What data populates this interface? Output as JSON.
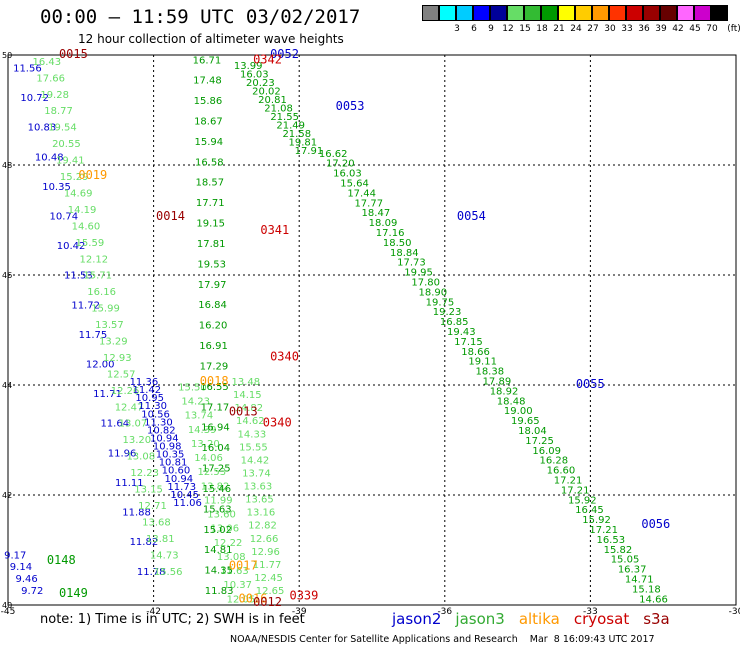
{
  "header": {
    "title": "00:00 – 11:59 UTC 03/02/2017",
    "subtitle": "12 hour collection of altimeter wave heights"
  },
  "colorbar": {
    "unit": "(ft)",
    "bins": [
      {
        "label": "",
        "color": "#808080"
      },
      {
        "label": "3",
        "color": "#00ffff"
      },
      {
        "label": "6",
        "color": "#00ccff"
      },
      {
        "label": "9",
        "color": "#0000ff"
      },
      {
        "label": "12",
        "color": "#000099"
      },
      {
        "label": "15",
        "color": "#66dd66"
      },
      {
        "label": "18",
        "color": "#33bb33"
      },
      {
        "label": "21",
        "color": "#009900"
      },
      {
        "label": "24",
        "color": "#ffff00"
      },
      {
        "label": "27",
        "color": "#ffcc00"
      },
      {
        "label": "30",
        "color": "#ff9900"
      },
      {
        "label": "33",
        "color": "#ff3300"
      },
      {
        "label": "36",
        "color": "#cc0000"
      },
      {
        "label": "39",
        "color": "#990000"
      },
      {
        "label": "42",
        "color": "#660000"
      },
      {
        "label": "45",
        "color": "#ff66ff"
      },
      {
        "label": "70",
        "color": "#cc00cc"
      },
      {
        "label": "",
        "color": "#000000"
      }
    ]
  },
  "map": {
    "lon_range": [
      -45,
      -30
    ],
    "lat_range": [
      40,
      50
    ],
    "x_ticks": [
      {
        "value": -45,
        "label": "-45"
      },
      {
        "value": -42,
        "label": "-42"
      },
      {
        "value": -39,
        "label": "-39"
      },
      {
        "value": -36,
        "label": "-36"
      },
      {
        "value": -33,
        "label": "-33"
      },
      {
        "value": -30,
        "label": "-30"
      }
    ],
    "y_ticks": [
      {
        "value": 40,
        "label": "40"
      },
      {
        "value": 42,
        "label": "42"
      },
      {
        "value": 44,
        "label": "44"
      },
      {
        "value": 46,
        "label": "46"
      },
      {
        "value": 48,
        "label": "48"
      },
      {
        "value": 50,
        "label": "50"
      }
    ],
    "colors": {
      "jason2": "#0000cc",
      "jason3": "#33aa33",
      "altika": "#ff9900",
      "cryosat": "#cc0000",
      "s3a": "#990000",
      "light": "#66dd66",
      "green": "#009900",
      "yellow": "#ffff00",
      "grid": "#000000"
    },
    "track_labels": [
      {
        "text": "0015",
        "lon": -43.95,
        "lat": 49.95,
        "color": "s3a"
      },
      {
        "text": "0052",
        "lon": -39.6,
        "lat": 49.95,
        "color": "jason2"
      },
      {
        "text": "0342",
        "lon": -39.95,
        "lat": 49.85,
        "color": "cryosat"
      },
      {
        "text": "0053",
        "lon": -38.25,
        "lat": 49.0,
        "color": "jason2"
      },
      {
        "text": "0019",
        "lon": -43.55,
        "lat": 47.75,
        "color": "altika"
      },
      {
        "text": "0014",
        "lon": -41.95,
        "lat": 47.0,
        "color": "s3a"
      },
      {
        "text": "0054",
        "lon": -35.75,
        "lat": 47.0,
        "color": "jason2"
      },
      {
        "text": "0341",
        "lon": -39.8,
        "lat": 46.75,
        "color": "cryosat"
      },
      {
        "text": "0340",
        "lon": -39.6,
        "lat": 44.45,
        "color": "cryosat"
      },
      {
        "text": "0018",
        "lon": -41.05,
        "lat": 44.0,
        "color": "altika"
      },
      {
        "text": "0055",
        "lon": -33.3,
        "lat": 43.95,
        "color": "jason2"
      },
      {
        "text": "0013",
        "lon": -40.45,
        "lat": 43.45,
        "color": "s3a"
      },
      {
        "text": "0340",
        "lon": -39.75,
        "lat": 43.25,
        "color": "cryosat"
      },
      {
        "text": "0148",
        "lon": -44.2,
        "lat": 40.75,
        "color": "green"
      },
      {
        "text": "0149",
        "lon": -43.95,
        "lat": 40.15,
        "color": "green"
      },
      {
        "text": "0017",
        "lon": -40.45,
        "lat": 40.65,
        "color": "altika"
      },
      {
        "text": "0056",
        "lon": -31.95,
        "lat": 41.4,
        "color": "jason2"
      },
      {
        "text": "0339",
        "lon": -39.2,
        "lat": 40.1,
        "color": "cryosat"
      },
      {
        "text": "0016",
        "lon": -40.25,
        "lat": 40.05,
        "color": "altika"
      },
      {
        "text": "0012",
        "lon": -39.95,
        "lat": 39.98,
        "color": "s3a"
      }
    ],
    "tracks": [
      {
        "name": "jason2-west",
        "start": [
          -44.6,
          49.7
        ],
        "end": [
          -42.05,
          40.55
        ],
        "color": "jason2",
        "values": [
          "11.56",
          "10.72",
          "10.83",
          "10.48",
          "10.35",
          "10.74",
          "10.42",
          "11.53",
          "11.72",
          "11.75",
          "12.00",
          "11.71",
          "11.64",
          "11.96",
          "11.11",
          "11.88",
          "11.82",
          "11.78"
        ]
      },
      {
        "name": "jason3-west",
        "start": [
          -44.2,
          49.82
        ],
        "end": [
          -41.7,
          40.55
        ],
        "color": "light",
        "values": [
          "16.43",
          "17.66",
          "19.28",
          "18.77",
          "19.54",
          "20.55",
          "19.41",
          "15.29",
          "14.69",
          "14.19",
          "14.60",
          "15.59",
          "12.12",
          "15.71",
          "16.16",
          "15.99",
          "13.57",
          "13.29",
          "12.93",
          "12.57",
          "12.26",
          "12.47",
          "13.07",
          "13.20",
          "13.08",
          "12.23",
          "13.15",
          "12.71",
          "13.68",
          "13.81",
          "14.73",
          "15.56"
        ]
      },
      {
        "name": "jason2-mid",
        "start": [
          -42.2,
          44.0
        ],
        "end": [
          -41.3,
          41.8
        ],
        "color": "jason2",
        "values": [
          "11.36",
          "11.42",
          "10.95",
          "11.30",
          "10.56",
          "11.30",
          "10.82",
          "10.94",
          "10.98",
          "10.35",
          "10.81",
          "10.60",
          "10.94",
          "11.73",
          "10.45",
          "11.06"
        ]
      },
      {
        "name": "jason3-mid",
        "start": [
          -41.2,
          43.9
        ],
        "end": [
          -40.2,
          40.05
        ],
        "color": "light",
        "values": [
          "15.50",
          "14.23",
          "13.74",
          "14.39",
          "13.20",
          "14.06",
          "12.53",
          "13.82",
          "11.99",
          "13.60",
          "13.06",
          "12.22",
          "13.08",
          "11.63",
          "10.37",
          "12.05"
        ]
      },
      {
        "name": "jason3-central",
        "start": [
          -40.9,
          49.85
        ],
        "end": [
          -40.65,
          40.2
        ],
        "color": "green",
        "values": [
          "16.71",
          "17.48",
          "15.86",
          "18.67",
          "15.94",
          "16.58",
          "18.57",
          "17.71",
          "19.15",
          "17.81",
          "19.53",
          "17.97",
          "16.84",
          "16.20",
          "16.91",
          "17.29",
          "16.55",
          "17.17",
          "16.94",
          "16.04",
          "17.25",
          "15.46",
          "15.63",
          "15.02",
          "14.81",
          "14.35",
          "11.83"
        ]
      },
      {
        "name": "jason3-east-of-central",
        "start": [
          -40.1,
          44.0
        ],
        "end": [
          -39.6,
          40.2
        ],
        "color": "light",
        "values": [
          "13.48",
          "14.15",
          "14.82",
          "14.62",
          "14.33",
          "15.55",
          "14.42",
          "13.74",
          "13.63",
          "13.65",
          "13.16",
          "12.82",
          "12.66",
          "12.96",
          "11.77",
          "12.45",
          "12.65"
        ]
      },
      {
        "name": "jason2-ne",
        "start": [
          -40.05,
          49.75
        ],
        "end": [
          -38.8,
          48.2
        ],
        "color": "green",
        "values": [
          "13.99",
          "16.03",
          "20.23",
          "20.02",
          "20.81",
          "21.08",
          "21.55",
          "21.49",
          "21.58",
          "19.81",
          "17.91"
        ]
      },
      {
        "name": "jason2-diagonal",
        "start": [
          -38.3,
          48.15
        ],
        "end": [
          -31.7,
          40.05
        ],
        "color": "green",
        "values": [
          "16.62",
          "17.20",
          "16.03",
          "15.64",
          "17.44",
          "17.77",
          "18.47",
          "18.09",
          "17.16",
          "18.50",
          "18.84",
          "17.73",
          "19.95",
          "17.80",
          "18.90",
          "19.75",
          "19.23",
          "16.85",
          "19.43",
          "17.15",
          "18.66",
          "19.11",
          "18.38",
          "17.89",
          "18.92",
          "18.48",
          "19.00",
          "19.65",
          "18.04",
          "17.25",
          "16.09",
          "16.28",
          "16.60",
          "17.21",
          "17.21",
          "15.92",
          "16.45",
          "15.92",
          "17.21",
          "16.53",
          "15.82",
          "15.05",
          "16.37",
          "14.71",
          "15.18",
          "14.66"
        ]
      },
      {
        "name": "jason2-sw",
        "start": [
          -44.85,
          40.85
        ],
        "end": [
          -44.5,
          40.2
        ],
        "color": "jason2",
        "values": [
          "9.17",
          "9.14",
          "9.46",
          "9.72"
        ]
      }
    ]
  },
  "notes": {
    "note": "note: 1) Time is in UTC; 2) SWH is in feet",
    "legend": [
      {
        "name": "jason2",
        "color": "#0000cc"
      },
      {
        "name": "jason3",
        "color": "#33aa33"
      },
      {
        "name": "altika",
        "color": "#ff9900"
      },
      {
        "name": "cryosat",
        "color": "#cc0000"
      },
      {
        "name": "s3a",
        "color": "#990000"
      }
    ],
    "footer": "NOAA/NESDIS Center for Satellite Applications and Research    Mar  8 16:09:43 UTC 2017"
  }
}
